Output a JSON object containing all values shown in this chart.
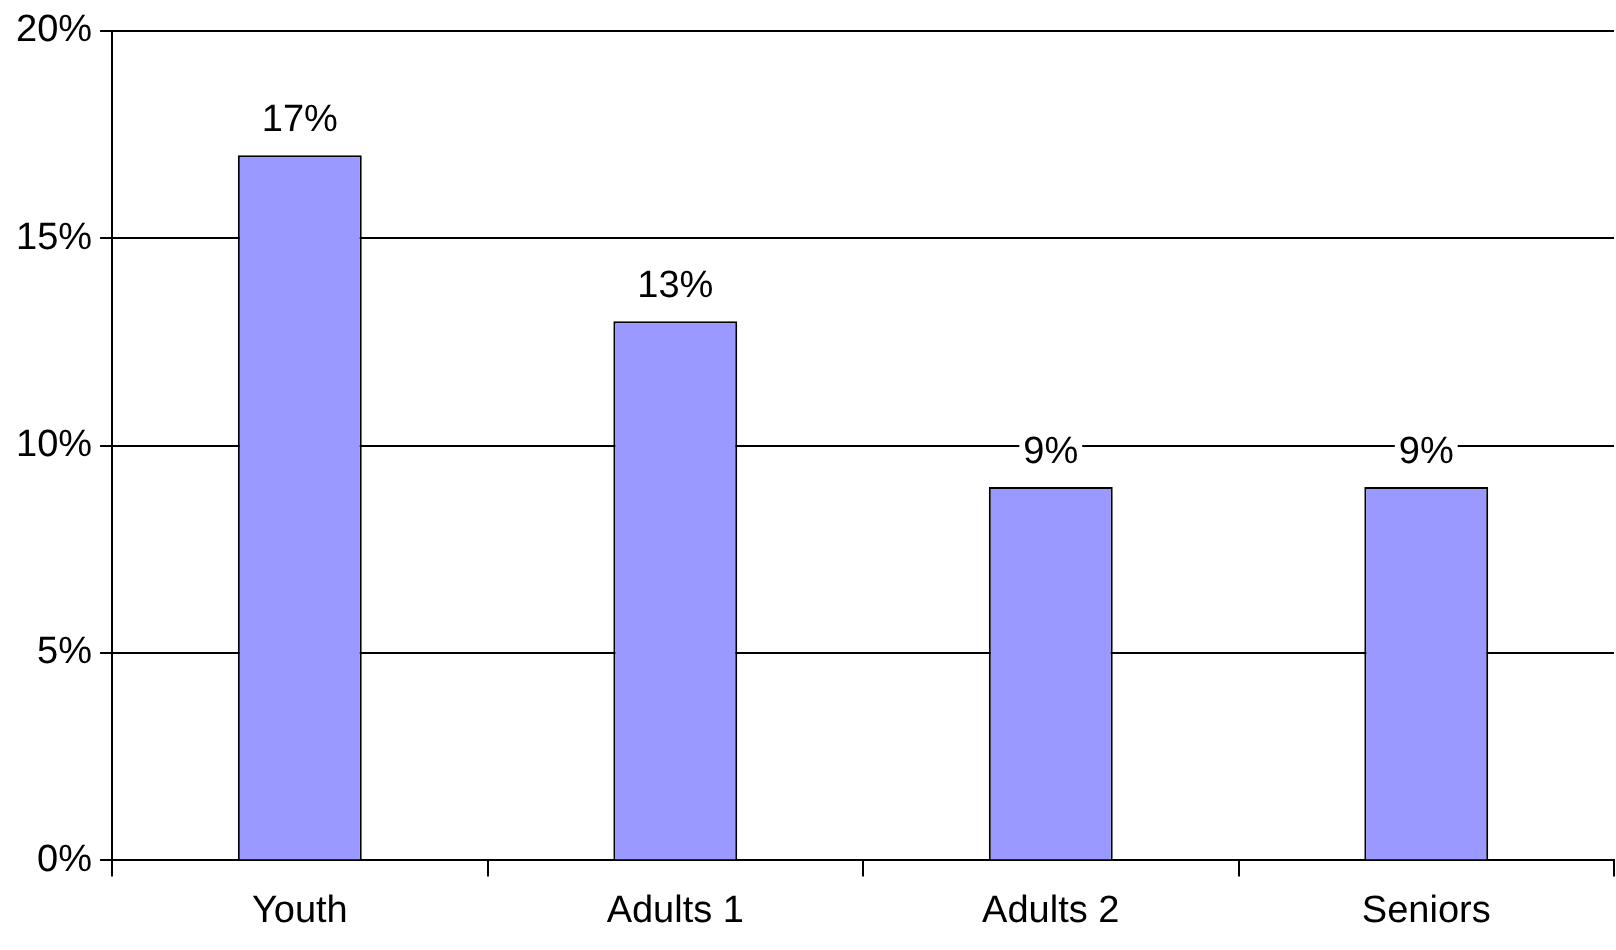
{
  "chart_data": {
    "type": "bar",
    "categories": [
      "Youth",
      "Adults 1",
      "Adults 2",
      "Seniors"
    ],
    "values": [
      17,
      13,
      9,
      9
    ],
    "color": "#9999ff",
    "value_labels": [
      "17%",
      "13%",
      "9%",
      "9%"
    ],
    "ylim": [
      0,
      20
    ],
    "yticks": [
      {
        "value": 0,
        "label": "0%"
      },
      {
        "value": 5,
        "label": "5%"
      },
      {
        "value": 10,
        "label": "10%"
      },
      {
        "value": 15,
        "label": "15%"
      },
      {
        "value": 20,
        "label": "20%"
      }
    ],
    "grid": "y",
    "legend": false
  }
}
